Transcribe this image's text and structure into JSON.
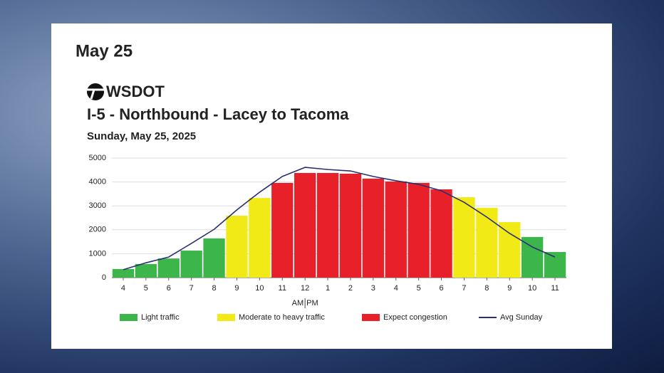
{
  "header": "May 25",
  "chart_data": {
    "type": "bar",
    "logo": "WSDOT",
    "title": "I-5 - Northbound - Lacey to Tacoma",
    "subtitle": "Sunday, May 25, 2025",
    "categories": [
      "4",
      "5",
      "6",
      "7",
      "8",
      "9",
      "10",
      "11",
      "12",
      "1",
      "2",
      "3",
      "4",
      "5",
      "6",
      "7",
      "8",
      "9",
      "10",
      "11"
    ],
    "x_axis_labels": [
      "AM",
      "PM"
    ],
    "series": [
      {
        "name": "Light traffic",
        "color": "#3cb54a",
        "values": [
          360,
          570,
          800,
          1130,
          1640,
          null,
          null,
          null,
          null,
          null,
          null,
          null,
          null,
          null,
          null,
          null,
          null,
          null,
          1700,
          1070
        ]
      },
      {
        "name": "Moderate to heavy traffic",
        "color": "#f2ea16",
        "values": [
          null,
          null,
          null,
          null,
          null,
          2590,
          3330,
          null,
          null,
          null,
          null,
          null,
          null,
          null,
          null,
          3360,
          2920,
          2320,
          null,
          null
        ]
      },
      {
        "name": "Expect congestion",
        "color": "#e8202a",
        "values": [
          null,
          null,
          null,
          null,
          null,
          null,
          null,
          3960,
          4375,
          4375,
          4345,
          4140,
          4020,
          3960,
          3690,
          null,
          null,
          null,
          null,
          null
        ]
      },
      {
        "name": "Avg Sunday",
        "type": "line",
        "color": "#2b2f6e",
        "values": [
          330,
          620,
          860,
          1430,
          2020,
          2830,
          3570,
          4230,
          4610,
          4520,
          4460,
          4230,
          4050,
          3900,
          3630,
          3150,
          2530,
          1850,
          1280,
          860
        ]
      }
    ],
    "ylim": [
      0,
      5000
    ],
    "yticks": [
      0,
      1000,
      2000,
      3000,
      4000,
      5000
    ],
    "grid": true
  }
}
